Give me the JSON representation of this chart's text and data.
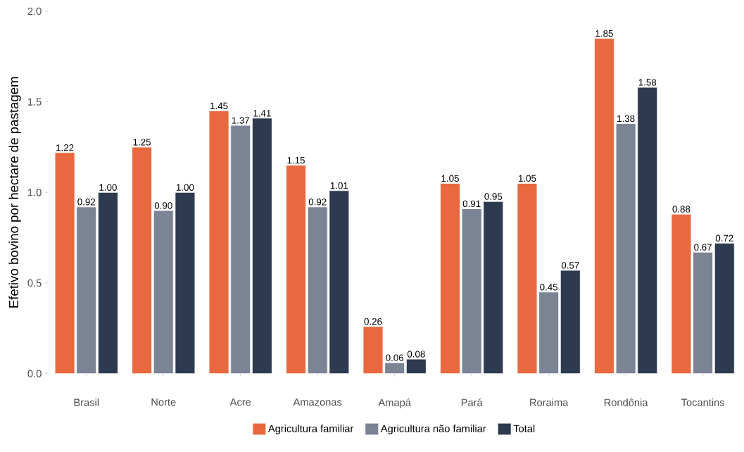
{
  "chart_data": {
    "type": "bar",
    "ylabel": "Efetivo bovino por hectare de pastagem",
    "categories": [
      "Brasil",
      "Norte",
      "Acre",
      "Amazonas",
      "Amapá",
      "Pará",
      "Roraima",
      "Rondônia",
      "Tocantins"
    ],
    "series": [
      {
        "name": "Agricultura familiar",
        "color": "#e8693f",
        "values": [
          1.22,
          1.25,
          1.45,
          1.15,
          0.26,
          1.05,
          1.05,
          1.85,
          0.88
        ],
        "value_labels": [
          "1.22",
          "1.25",
          "1.45",
          "1.15",
          "0.26",
          "1.05",
          "1.05",
          "1.85",
          "0.88"
        ]
      },
      {
        "name": "Agricultura não familiar",
        "color": "#7a8494",
        "values": [
          0.92,
          0.9,
          1.37,
          0.92,
          0.06,
          0.91,
          0.45,
          1.38,
          0.67
        ],
        "value_labels": [
          "0.92",
          "0.90",
          "1.37",
          "0.92",
          "0.06",
          "0.91",
          "0.45",
          "1.38",
          "0.67"
        ]
      },
      {
        "name": "Total",
        "color": "#2d3a4f",
        "values": [
          1.0,
          1.0,
          1.41,
          1.01,
          0.08,
          0.95,
          0.57,
          1.58,
          0.72
        ],
        "value_labels": [
          "1.00",
          "1.00",
          "1.41",
          "1.01",
          "0.08",
          "0.95",
          "0.57",
          "1.58",
          "0.72"
        ]
      }
    ],
    "ylim": [
      0,
      2.0
    ],
    "yticks": [
      {
        "value": 0,
        "label": "0.0"
      },
      {
        "value": 0.5,
        "label": "0.5"
      },
      {
        "value": 1,
        "label": "1.0"
      },
      {
        "value": 1.5,
        "label": "1.5"
      },
      {
        "value": 2,
        "label": "2.0"
      }
    ],
    "grid": false,
    "legend": "bottom"
  }
}
